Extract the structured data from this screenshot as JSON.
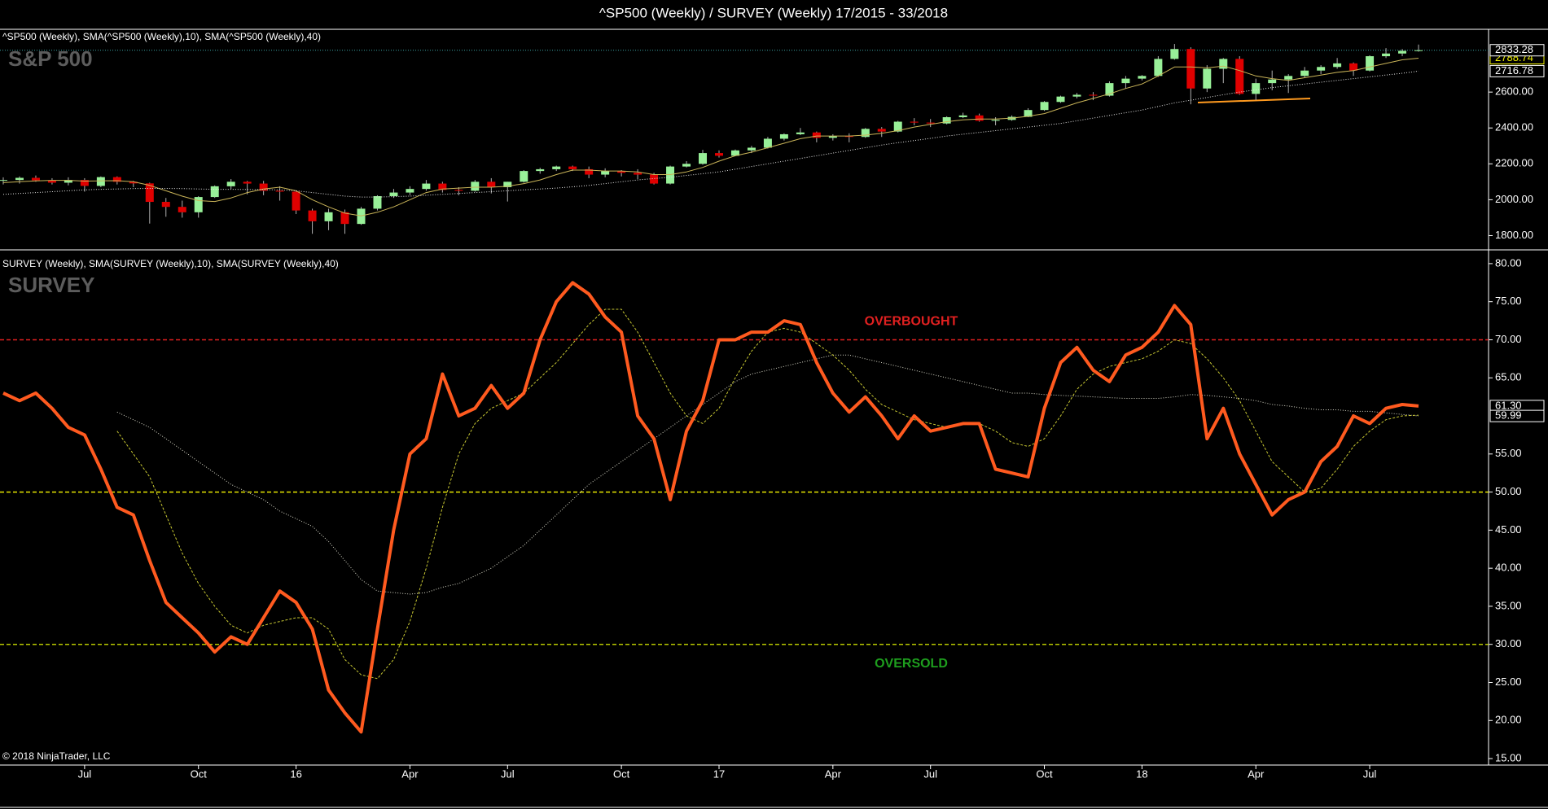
{
  "title": "^SP500 (Weekly) / SURVEY (Weekly)  17/2015 - 33/2018",
  "chart_data": [
    {
      "type": "candlestick",
      "legend_text": "^SP500 (Weekly),  SMA(^SP500 (Weekly),10),  SMA(^SP500 (Weekly),40)",
      "panel_label": "S&P 500",
      "up_color": "#98f098",
      "down_color": "#e00000",
      "wick_color": "#b0b0b0",
      "last_line_color": "#3aa3a3",
      "open": [
        2108,
        2110,
        2122,
        2108,
        2095,
        2110,
        2077,
        2126,
        2100,
        2091,
        1988,
        1960,
        1930,
        2015,
        2075,
        2100,
        2090,
        2050,
        2045,
        1940,
        1880,
        1930,
        1865,
        1950,
        2020,
        2040,
        2060,
        2090,
        2055,
        2050,
        2100,
        2070,
        2100,
        2160,
        2170,
        2185,
        2170,
        2140,
        2160,
        2150,
        2140,
        2090,
        2185,
        2200,
        2260,
        2245,
        2275,
        2290,
        2340,
        2365,
        2375,
        2345,
        2355,
        2350,
        2395,
        2380,
        2435,
        2430,
        2425,
        2460,
        2470,
        2440,
        2445,
        2462,
        2500,
        2545,
        2575,
        2585,
        2580,
        2650,
        2675,
        2690,
        2785,
        2840,
        2620,
        2730,
        2785,
        2590,
        2650,
        2670,
        2690,
        2720,
        2740,
        2760,
        2720,
        2800,
        2815,
        2830
      ],
      "high": [
        2125,
        2130,
        2135,
        2120,
        2125,
        2120,
        2130,
        2130,
        2105,
        2095,
        2010,
        1995,
        2020,
        2080,
        2115,
        2105,
        2105,
        2075,
        2050,
        1950,
        1950,
        1945,
        1960,
        2025,
        2060,
        2075,
        2110,
        2100,
        2070,
        2110,
        2120,
        2100,
        2165,
        2178,
        2190,
        2190,
        2185,
        2175,
        2165,
        2170,
        2150,
        2190,
        2215,
        2278,
        2275,
        2280,
        2300,
        2350,
        2370,
        2400,
        2380,
        2365,
        2370,
        2400,
        2405,
        2440,
        2455,
        2450,
        2465,
        2485,
        2480,
        2460,
        2470,
        2510,
        2550,
        2580,
        2595,
        2600,
        2660,
        2690,
        2695,
        2800,
        2868,
        2850,
        2750,
        2790,
        2800,
        2675,
        2720,
        2700,
        2740,
        2750,
        2790,
        2765,
        2805,
        2845,
        2840,
        2865
      ],
      "low": [
        2085,
        2090,
        2100,
        2085,
        2080,
        2045,
        2070,
        2085,
        2070,
        1867,
        1905,
        1900,
        1900,
        2010,
        2060,
        2030,
        2025,
        1995,
        1920,
        1810,
        1830,
        1810,
        1860,
        1940,
        2010,
        2025,
        2050,
        2040,
        2025,
        2045,
        2035,
        1990,
        2095,
        2145,
        2160,
        2160,
        2120,
        2125,
        2130,
        2115,
        2085,
        2085,
        2180,
        2195,
        2235,
        2245,
        2260,
        2285,
        2330,
        2360,
        2320,
        2330,
        2320,
        2345,
        2350,
        2375,
        2415,
        2405,
        2420,
        2455,
        2435,
        2415,
        2440,
        2460,
        2495,
        2540,
        2565,
        2555,
        2575,
        2620,
        2665,
        2685,
        2780,
        2532,
        2600,
        2650,
        2585,
        2555,
        2610,
        2595,
        2680,
        2700,
        2730,
        2690,
        2715,
        2790,
        2800,
        2825
      ],
      "close": [
        2110,
        2122,
        2108,
        2095,
        2110,
        2077,
        2126,
        2100,
        2091,
        1988,
        1960,
        1930,
        2015,
        2075,
        2100,
        2090,
        2050,
        2045,
        1940,
        1880,
        1930,
        1865,
        1950,
        2020,
        2040,
        2060,
        2090,
        2055,
        2050,
        2100,
        2070,
        2100,
        2160,
        2170,
        2185,
        2170,
        2140,
        2160,
        2150,
        2140,
        2090,
        2185,
        2200,
        2260,
        2245,
        2275,
        2290,
        2340,
        2365,
        2375,
        2345,
        2355,
        2350,
        2395,
        2380,
        2435,
        2430,
        2425,
        2460,
        2470,
        2440,
        2445,
        2462,
        2500,
        2545,
        2575,
        2585,
        2580,
        2650,
        2675,
        2690,
        2785,
        2840,
        2620,
        2730,
        2785,
        2590,
        2650,
        2670,
        2690,
        2720,
        2740,
        2760,
        2720,
        2800,
        2815,
        2830,
        2833.28
      ],
      "series": [
        {
          "color": "#c9b458",
          "style": "solid",
          "width": 1,
          "values": [
            2095,
            2100,
            2105,
            2108,
            2108,
            2104,
            2105,
            2106,
            2100,
            2080,
            2050,
            2020,
            1995,
            1990,
            2010,
            2040,
            2060,
            2070,
            2050,
            2000,
            1960,
            1925,
            1910,
            1930,
            1960,
            2000,
            2040,
            2060,
            2065,
            2070,
            2070,
            2075,
            2090,
            2110,
            2140,
            2165,
            2165,
            2160,
            2160,
            2155,
            2140,
            2140,
            2155,
            2180,
            2215,
            2245,
            2265,
            2290,
            2315,
            2340,
            2355,
            2355,
            2355,
            2360,
            2370,
            2385,
            2405,
            2420,
            2435,
            2445,
            2450,
            2450,
            2455,
            2465,
            2480,
            2510,
            2540,
            2565,
            2590,
            2620,
            2645,
            2690,
            2740,
            2740,
            2735,
            2745,
            2720,
            2690,
            2675,
            2665,
            2680,
            2695,
            2710,
            2720,
            2740,
            2760,
            2780,
            2788.74
          ]
        },
        {
          "color": "#e8e8e8",
          "style": "dotted",
          "width": 1,
          "values": [
            2030,
            2035,
            2040,
            2045,
            2050,
            2055,
            2058,
            2060,
            2062,
            2063,
            2063,
            2062,
            2060,
            2058,
            2058,
            2057,
            2056,
            2055,
            2050,
            2040,
            2030,
            2020,
            2015,
            2015,
            2017,
            2020,
            2025,
            2030,
            2035,
            2040,
            2045,
            2050,
            2055,
            2060,
            2065,
            2072,
            2080,
            2090,
            2100,
            2110,
            2118,
            2125,
            2135,
            2145,
            2155,
            2170,
            2185,
            2200,
            2215,
            2230,
            2245,
            2260,
            2275,
            2290,
            2305,
            2318,
            2330,
            2342,
            2355,
            2365,
            2375,
            2385,
            2395,
            2405,
            2415,
            2425,
            2440,
            2455,
            2470,
            2485,
            2500,
            2520,
            2540,
            2555,
            2570,
            2585,
            2600,
            2612,
            2625,
            2635,
            2645,
            2655,
            2665,
            2675,
            2685,
            2695,
            2705,
            2716.78
          ]
        }
      ],
      "ylim": [
        1725,
        2950
      ],
      "yticks": [
        {
          "value": 1800,
          "label": "1800.00"
        },
        {
          "value": 2000,
          "label": "2000.00"
        },
        {
          "value": 2200,
          "label": "2200.00"
        },
        {
          "value": 2400,
          "label": "2400.00"
        },
        {
          "value": 2600,
          "label": "2600.00"
        }
      ],
      "markers": [
        {
          "value": 2788.74,
          "label": "2788.74",
          "color": "#f0f000"
        },
        {
          "value": 2833.28,
          "label": "2833.28",
          "color": "#ffffff"
        },
        {
          "value": 2716.78,
          "label": "2716.78",
          "color": "#ffffff"
        }
      ]
    },
    {
      "type": "line",
      "legend_text": "SURVEY (Weekly),  SMA(SURVEY (Weekly),10),  SMA(SURVEY (Weekly),40)",
      "panel_label": "SURVEY",
      "note": "© 2018 NinjaTrader, LLC",
      "categories": [
        null,
        null,
        null,
        null,
        null,
        "Jul",
        null,
        null,
        null,
        null,
        null,
        null,
        "Oct",
        null,
        null,
        null,
        null,
        null,
        "16",
        null,
        null,
        null,
        null,
        null,
        null,
        "Apr",
        null,
        null,
        null,
        null,
        null,
        "Jul",
        null,
        null,
        null,
        null,
        null,
        null,
        "Oct",
        null,
        null,
        null,
        null,
        null,
        "17",
        null,
        null,
        null,
        null,
        null,
        null,
        "Apr",
        null,
        null,
        null,
        null,
        null,
        "Jul",
        null,
        null,
        null,
        null,
        null,
        null,
        "Oct",
        null,
        null,
        null,
        null,
        null,
        "18",
        null,
        null,
        null,
        null,
        null,
        null,
        "Apr",
        null,
        null,
        null,
        null,
        null,
        null,
        "Jul",
        null,
        null,
        null
      ],
      "series": [
        {
          "color": "#d8d8c8",
          "style": "dotted",
          "width": 1,
          "values": [
            null,
            null,
            null,
            null,
            null,
            null,
            null,
            60.5,
            59.5,
            58.5,
            57,
            55.5,
            54,
            52.5,
            51,
            50,
            49,
            47.5,
            46.5,
            45.5,
            43.5,
            41,
            38.5,
            37,
            36.8,
            36.6,
            36.8,
            37.5,
            38,
            39,
            40,
            41.5,
            43,
            45,
            47,
            49,
            51,
            52.5,
            54,
            55.5,
            57,
            58.5,
            60,
            61.5,
            63,
            64.5,
            65.5,
            66,
            66.5,
            67,
            67.5,
            68,
            68,
            67.5,
            67,
            66.5,
            66,
            65.5,
            65,
            64.5,
            64,
            63.5,
            63,
            63,
            62.8,
            62.7,
            62.6,
            62.5,
            62.4,
            62.3,
            62.3,
            62.3,
            62.5,
            62.8,
            62.7,
            62.5,
            62.3,
            62,
            61.5,
            61.3,
            61,
            60.8,
            60.8,
            60.6,
            60.6,
            60.4,
            60.2,
            59.99
          ]
        },
        {
          "color": "#c8c832",
          "style": "dashed",
          "width": 1,
          "values": [
            null,
            null,
            null,
            null,
            null,
            null,
            null,
            58,
            55,
            52,
            47,
            42,
            38,
            35,
            32.5,
            31.5,
            32.5,
            33,
            33.5,
            33.5,
            32,
            28,
            26,
            25.5,
            28,
            33,
            40,
            48,
            55,
            59,
            61,
            62,
            63,
            65,
            67,
            69.5,
            72,
            74,
            74,
            71,
            67,
            63,
            60,
            59,
            61,
            65,
            68.5,
            71,
            71.5,
            71,
            69.5,
            68,
            66,
            63.5,
            61.5,
            60.5,
            59.5,
            59,
            58.5,
            59,
            59,
            58,
            56.5,
            56,
            57,
            60,
            63.5,
            65.5,
            66.5,
            67,
            67.5,
            68.5,
            70,
            69.5,
            67.5,
            65,
            62,
            58,
            54,
            52,
            50,
            50.5,
            53,
            56,
            58,
            59.5,
            60,
            60.1
          ]
        },
        {
          "color": "#ff5a1f",
          "style": "solid",
          "width": 4,
          "values": [
            63,
            62,
            63,
            61,
            58.5,
            57.5,
            53,
            48,
            47,
            41,
            35.5,
            33.5,
            31.5,
            29,
            31,
            30,
            33.5,
            37,
            35.5,
            32,
            24,
            21,
            18.5,
            32,
            45,
            55,
            57,
            65.5,
            60,
            61,
            64,
            61,
            63,
            70,
            75,
            77.5,
            76,
            73,
            71,
            60,
            57,
            49,
            58,
            62,
            70,
            70,
            71,
            71,
            72.5,
            72,
            67,
            63,
            60.5,
            62.5,
            60,
            57,
            60,
            58,
            58.5,
            59,
            59,
            53,
            52.5,
            52,
            61,
            67,
            69,
            66,
            64.5,
            68,
            69,
            71,
            74.5,
            72,
            57,
            61,
            55,
            51,
            47,
            49,
            50,
            54,
            56,
            60,
            59,
            61,
            61.5,
            61.3
          ]
        }
      ],
      "hlines": [
        {
          "value": 70,
          "color": "#e02020",
          "label": "OVERBOUGHT",
          "label_color": "#e02020",
          "label_position": "above"
        },
        {
          "value": 50,
          "color": "#e6e600"
        },
        {
          "value": 30,
          "color": "#b8c800",
          "label": "OVERSOLD",
          "label_color": "#1e9e1e",
          "label_position": "below"
        }
      ],
      "ylim": [
        14.15,
        81.7
      ],
      "yticks": [
        {
          "value": 15,
          "label": "15.00"
        },
        {
          "value": 20,
          "label": "20.00"
        },
        {
          "value": 25,
          "label": "25.00"
        },
        {
          "value": 30,
          "label": "30.00"
        },
        {
          "value": 35,
          "label": "35.00"
        },
        {
          "value": 40,
          "label": "40.00"
        },
        {
          "value": 45,
          "label": "45.00"
        },
        {
          "value": 50,
          "label": "50.00"
        },
        {
          "value": 55,
          "label": "55.00"
        },
        {
          "value": 65,
          "label": "65.00"
        },
        {
          "value": 70,
          "label": "70.00"
        },
        {
          "value": 75,
          "label": "75.00"
        },
        {
          "value": 80,
          "label": "80.00"
        }
      ],
      "markers": [
        {
          "value": 61.3,
          "label": "61.30",
          "color": "#ffffff"
        },
        {
          "value": 59.99,
          "label": "59.99",
          "color": "#ffffff"
        }
      ]
    }
  ]
}
